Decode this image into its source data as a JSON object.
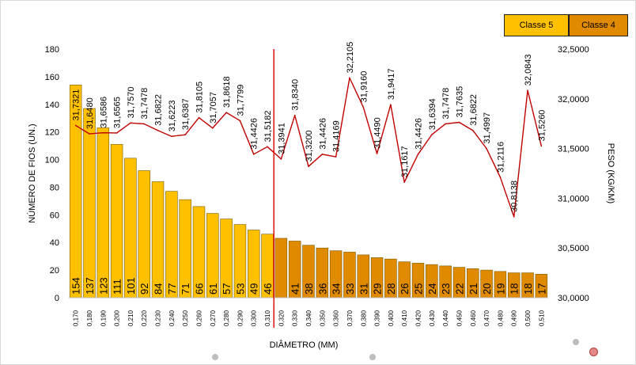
{
  "chart_data": {
    "type": "bar+line",
    "xlabel": "DIÂMETRO (MM)",
    "ylabel_left": "NÚMERO DE FIOS (UN.)",
    "ylabel_right": "PESO (KG/KM)",
    "ylim_left": [
      0,
      180
    ],
    "yticks_left": [
      "0",
      "20",
      "40",
      "60",
      "80",
      "100",
      "120",
      "140",
      "160",
      "180"
    ],
    "ylim_right": [
      30.0,
      32.5
    ],
    "yticks_right": [
      "30,0000",
      "30,5000",
      "31,0000",
      "31,5000",
      "32,0000",
      "32,5000"
    ],
    "categories": [
      "0,170",
      "0,180",
      "0,190",
      "0,200",
      "0,210",
      "0,220",
      "0,230",
      "0,240",
      "0,250",
      "0,260",
      "0,270",
      "0,280",
      "0,290",
      "0,300",
      "0,310",
      "0,320",
      "0,330",
      "0,340",
      "0,350",
      "0,360",
      "0,370",
      "0,380",
      "0,390",
      "0,400",
      "0,410",
      "0,420",
      "0,430",
      "0,440",
      "0,450",
      "0,460",
      "0,470",
      "0,480",
      "0,490",
      "0,500",
      "0,510"
    ],
    "bar_values": [
      154,
      137,
      123,
      111,
      101,
      92,
      84,
      77,
      71,
      66,
      61,
      57,
      53,
      49,
      46,
      43,
      41,
      38,
      36,
      34,
      33,
      31,
      29,
      28,
      26,
      25,
      24,
      23,
      22,
      21,
      20,
      19,
      18,
      18,
      17
    ],
    "bar_labels": [
      "154",
      "137",
      "123",
      "111",
      "101",
      "92",
      "84",
      "77",
      "71",
      "66",
      "61",
      "57",
      "53",
      "49",
      "46",
      "43",
      "41",
      "38",
      "36",
      "34",
      "33",
      "31",
      "29",
      "28",
      "26",
      "25",
      "24",
      "23",
      "22",
      "21",
      "20",
      "19",
      "18",
      "18",
      "17"
    ],
    "bar_class": [
      5,
      5,
      5,
      5,
      5,
      5,
      5,
      5,
      5,
      5,
      5,
      5,
      5,
      5,
      5,
      4,
      4,
      4,
      4,
      4,
      4,
      4,
      4,
      4,
      4,
      4,
      4,
      4,
      4,
      4,
      4,
      4,
      4,
      4,
      4
    ],
    "bar_labels_visible": [
      true,
      true,
      true,
      true,
      true,
      true,
      true,
      true,
      true,
      true,
      true,
      true,
      true,
      true,
      true,
      false,
      true,
      true,
      true,
      true,
      true,
      true,
      true,
      true,
      true,
      true,
      true,
      true,
      true,
      true,
      true,
      true,
      true,
      true,
      true
    ],
    "line_values": [
      31.7321,
      31.648,
      31.6586,
      31.6565,
      31.757,
      31.7478,
      31.6822,
      31.6223,
      31.6387,
      31.8105,
      31.7057,
      31.8618,
      31.7799,
      31.4426,
      31.5182,
      31.3941,
      31.834,
      31.32,
      31.4426,
      31.4169,
      32.2105,
      31.916,
      31.449,
      31.9417,
      31.1617,
      31.4426,
      31.6394,
      31.7478,
      31.7635,
      31.6822,
      31.4997,
      31.2116,
      30.8138,
      32.0843,
      31.526
    ],
    "line_labels": [
      "31,7321",
      "31,6480",
      "31,6586",
      "31,6565",
      "31,7570",
      "31,7478",
      "31,6822",
      "31,6223",
      "31,6387",
      "31,8105",
      "31,7057",
      "31,8618",
      "31,7799",
      "31,4426",
      "31,5182",
      "31,3941",
      "31,8340",
      "31,3200",
      "31,4426",
      "31,4169",
      "32,2105",
      "31,9160",
      "31,4490",
      "31,9417",
      "31,1617",
      "31,4426",
      "31,6394",
      "31,7478",
      "31,7635",
      "31,6822",
      "31,4997",
      "31,2116",
      "30,8138",
      "32,0843",
      "31,5260"
    ],
    "divider_between": [
      "0,310",
      "0,320"
    ],
    "legend": [
      {
        "label": "Classe 5",
        "color": "#FFC000"
      },
      {
        "label": "Classe 4",
        "color": "#E08A00"
      }
    ],
    "colors": {
      "classe5": "#FFC000",
      "classe4": "#E08A00",
      "line": "#C00000",
      "divider": "#E00000"
    }
  }
}
